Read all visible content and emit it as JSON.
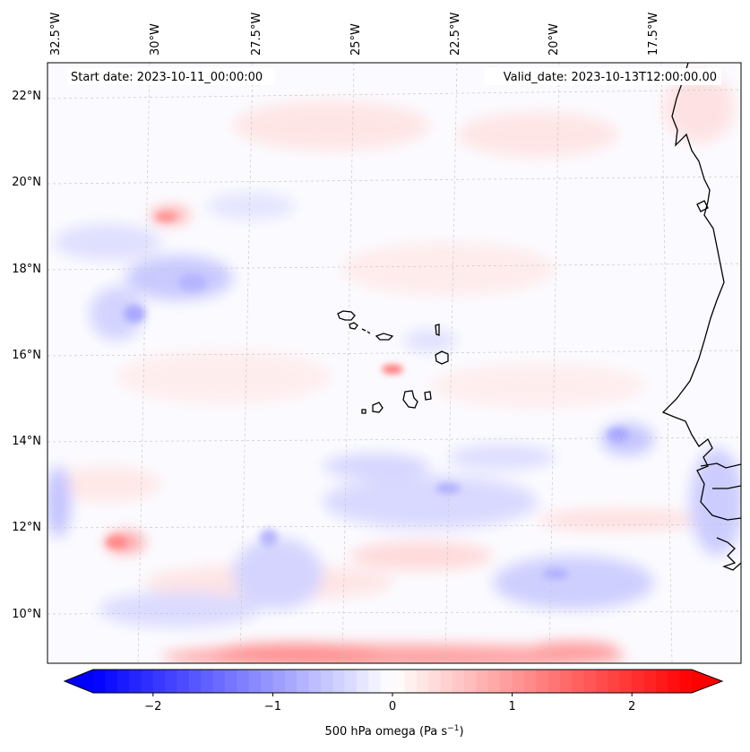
{
  "map": {
    "start_label": "Start date: 2023-10-11_00:00:00",
    "valid_label": "Valid_date: 2023-10-13T12:00:00.00",
    "lon_ticks": [
      "32.5°W",
      "30°W",
      "27.5°W",
      "25°W",
      "22.5°W",
      "20°W",
      "17.5°W"
    ],
    "lat_ticks": [
      "22°N",
      "20°N",
      "18°N",
      "16°N",
      "14°N",
      "12°N",
      "10°N"
    ],
    "colorbar": {
      "label": "500 hPa omega (Pa s",
      "label_sup": "−1",
      "label_close": ")",
      "ticks": [
        "−2",
        "−1",
        "0",
        "1",
        "2"
      ],
      "values": [
        -2,
        -1,
        0,
        1,
        2
      ],
      "min": -2.5,
      "max": 2.5
    },
    "colors": {
      "negative": "#0000ff",
      "positive": "#ff0000",
      "coastline": "#000000",
      "gridline": "#c8c8c8"
    }
  }
}
